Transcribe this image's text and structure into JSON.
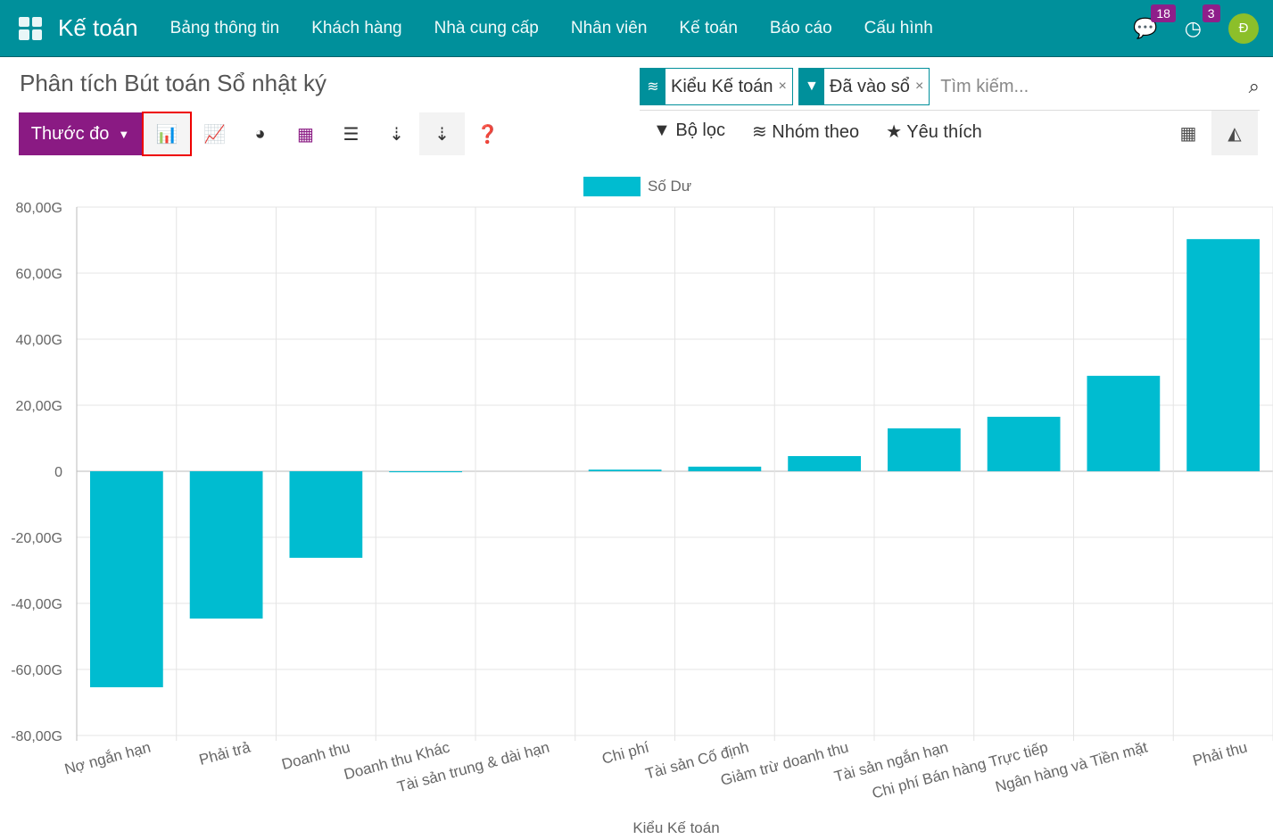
{
  "nav": {
    "brand": "Kế toán",
    "menu": [
      "Bảng thông tin",
      "Khách hàng",
      "Nhà cung cấp",
      "Nhân viên",
      "Kế toán",
      "Báo cáo",
      "Cấu hình"
    ],
    "messages_count": "18",
    "activities_count": "3",
    "avatar_letter": "Đ"
  },
  "page": {
    "title": "Phân tích Bút toán Sổ nhật ký"
  },
  "toolbar": {
    "measures_label": "Thước đo",
    "active_chart": "bar"
  },
  "search": {
    "facets": [
      {
        "icon": "layers-icon",
        "label": "Kiểu Kế toán"
      },
      {
        "icon": "filter-icon",
        "label": "Đã vào sổ"
      }
    ],
    "placeholder": "Tìm kiếm..."
  },
  "filters": {
    "filter_label": "Bộ lọc",
    "group_label": "Nhóm theo",
    "favorites_label": "Yêu thích"
  },
  "colors": {
    "nav": "#00909b",
    "accent": "#8a1a83",
    "bar": "#00bcd0"
  },
  "chart_data": {
    "type": "bar",
    "legend": [
      "Số Dư"
    ],
    "legend_position": "top",
    "xlabel": "Kiểu Kế toán",
    "ylabel": "",
    "ylim": [
      -80,
      80
    ],
    "y_ticks": [
      80,
      60,
      40,
      20,
      0,
      -20,
      -40,
      -60,
      -80
    ],
    "y_tick_labels": [
      "80,00G",
      "60,00G",
      "40,00G",
      "20,00G",
      "0",
      "-20,00G",
      "-40,00G",
      "-60,00G",
      "-80,00G"
    ],
    "grid": true,
    "unit": "G",
    "categories": [
      "Nợ ngắn hạn",
      "Phải trả",
      "Doanh thu",
      "Doanh thu Khác",
      "Tài sản trung & dài hạn",
      "Chi phí",
      "Tài sản Cố định",
      "Giảm trừ doanh thu",
      "Tài sản ngắn hạn",
      "Chi phí Bán hàng Trực tiếp",
      "Ngân hàng và Tiền mặt",
      "Phải thu"
    ],
    "series": [
      {
        "name": "Số Dư",
        "values": [
          -65.4,
          -44.6,
          -26.2,
          -0.3,
          0,
          0.5,
          1.4,
          4.6,
          13.0,
          16.5,
          28.9,
          70.3
        ]
      }
    ]
  }
}
